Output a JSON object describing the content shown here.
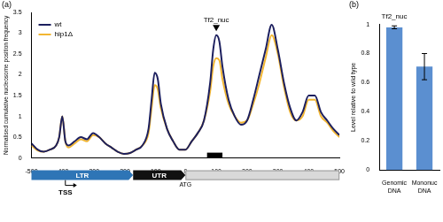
{
  "chart_data": [
    {
      "type": "line",
      "panel_label": "(a)",
      "y_label": "Normalised cumulative nucleosome position frequency",
      "x": [
        -500,
        -480,
        -460,
        -440,
        -420,
        -410,
        -400,
        -390,
        -380,
        -360,
        -340,
        -320,
        -300,
        -280,
        -260,
        -240,
        -220,
        -200,
        -180,
        -160,
        -140,
        -120,
        -110,
        -100,
        -90,
        -80,
        -60,
        -40,
        -20,
        0,
        20,
        40,
        60,
        80,
        90,
        100,
        110,
        120,
        140,
        160,
        180,
        200,
        220,
        240,
        260,
        280,
        300,
        320,
        340,
        360,
        380,
        400,
        420,
        440,
        460,
        480,
        500
      ],
      "xlim": [
        -500,
        500
      ],
      "xticks": [
        -500,
        -400,
        -300,
        -200,
        -100,
        0,
        100,
        200,
        300,
        400,
        500
      ],
      "ylim": [
        0,
        3.5
      ],
      "yticks": [
        0,
        0.5,
        1,
        1.5,
        2,
        2.5,
        3,
        3.5
      ],
      "grid": false,
      "legend": "top-left",
      "series": [
        {
          "name": "wt",
          "color": "#1c1f5e",
          "values": [
            0.35,
            0.2,
            0.15,
            0.2,
            0.3,
            0.5,
            1.0,
            0.4,
            0.3,
            0.4,
            0.5,
            0.45,
            0.6,
            0.5,
            0.35,
            0.25,
            0.15,
            0.1,
            0.12,
            0.2,
            0.3,
            0.7,
            1.4,
            2.05,
            1.9,
            1.3,
            0.7,
            0.4,
            0.2,
            0.2,
            0.4,
            0.6,
            0.9,
            1.8,
            2.6,
            2.95,
            2.8,
            2.2,
            1.4,
            1.0,
            0.8,
            0.9,
            1.4,
            2.0,
            2.6,
            3.2,
            2.6,
            1.8,
            1.2,
            0.9,
            1.1,
            1.5,
            1.5,
            1.1,
            0.9,
            0.7,
            0.55
          ]
        },
        {
          "name": "hip1Δ",
          "color": "#f2b632",
          "values": [
            0.3,
            0.18,
            0.15,
            0.2,
            0.3,
            0.5,
            1.0,
            0.4,
            0.25,
            0.35,
            0.45,
            0.4,
            0.55,
            0.5,
            0.35,
            0.25,
            0.15,
            0.1,
            0.12,
            0.2,
            0.3,
            0.6,
            1.2,
            1.75,
            1.65,
            1.2,
            0.7,
            0.4,
            0.2,
            0.2,
            0.4,
            0.6,
            0.9,
            1.6,
            2.2,
            2.4,
            2.35,
            1.9,
            1.3,
            1.0,
            0.85,
            0.9,
            1.3,
            1.8,
            2.4,
            2.95,
            2.5,
            1.7,
            1.1,
            0.9,
            1.0,
            1.4,
            1.4,
            1.0,
            0.85,
            0.65,
            0.5
          ]
        }
      ],
      "annotations": [
        {
          "text": "Tf2_nuc",
          "x": 100,
          "y": 3.05
        }
      ],
      "gene_map": {
        "regions": [
          {
            "label": "LTR",
            "start": -500,
            "end": -170,
            "color": "#2e75b6"
          },
          {
            "label": "UTR",
            "start": -170,
            "end": 0,
            "color": "#111111"
          }
        ],
        "gene_body": {
          "start": 0,
          "end": 500,
          "color": "#d9d9d9"
        },
        "markers": [
          {
            "label": "TSS",
            "x": -390
          },
          {
            "label": "ATG",
            "x": 0
          }
        ],
        "probe": {
          "start": 70,
          "end": 120
        }
      }
    },
    {
      "type": "bar",
      "panel_label": "(b)",
      "title": "Tf2_nuc",
      "y_label": "Level relative to wild type",
      "categories": [
        "Genomic DNA",
        "Mononuc DNA"
      ],
      "values": [
        0.98,
        0.71
      ],
      "errors": [
        0.01,
        0.09
      ],
      "color": "#5b8fd0",
      "ylim": [
        0,
        1
      ],
      "yticks": [
        0,
        0.2,
        0.4,
        0.6,
        0.8,
        1
      ],
      "grid": false
    }
  ]
}
